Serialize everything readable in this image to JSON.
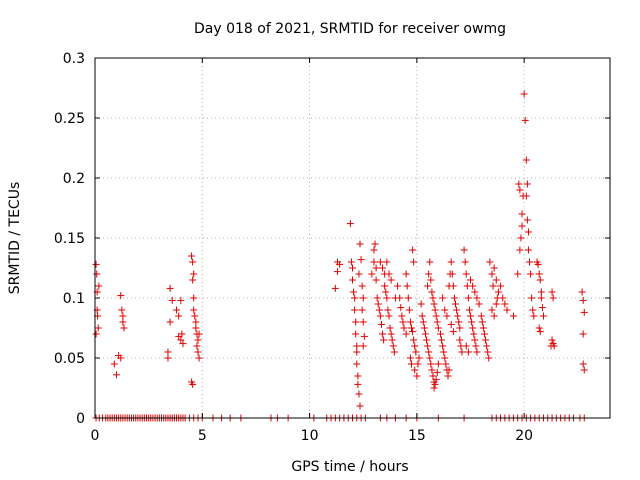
{
  "chart_data": {
    "type": "scatter",
    "title": "Day 018 of 2021, SRMTID for receiver owmg",
    "xlabel": "GPS time / hours",
    "ylabel": "SRMTID / TECUs",
    "xlim": [
      0,
      24
    ],
    "ylim": [
      0,
      0.3
    ],
    "xticks": [
      0,
      5,
      10,
      15,
      20
    ],
    "xtick_labels": [
      "0",
      "5",
      "10",
      "15",
      "20"
    ],
    "yticks": [
      0,
      0.05,
      0.1,
      0.15,
      0.2,
      0.25,
      0.3
    ],
    "ytick_labels": [
      "0",
      "0.05",
      "0.1",
      "0.15",
      "0.2",
      "0.25",
      "0.3"
    ],
    "grid": true,
    "marker": "+",
    "color": "#e00000",
    "series": [
      {
        "name": "SRMTID",
        "points": [
          [
            0.05,
            0.128
          ],
          [
            0.08,
            0.12
          ],
          [
            0.1,
            0.105
          ],
          [
            0.1,
            0.09
          ],
          [
            0.12,
            0.085
          ],
          [
            0.15,
            0.075
          ],
          [
            0.05,
            0.07
          ],
          [
            0.18,
            0.11
          ],
          [
            0.9,
            0.045
          ],
          [
            1.0,
            0.036
          ],
          [
            1.1,
            0.052
          ],
          [
            1.2,
            0.05
          ],
          [
            1.2,
            0.102
          ],
          [
            1.25,
            0.09
          ],
          [
            1.3,
            0.085
          ],
          [
            1.3,
            0.08
          ],
          [
            1.35,
            0.075
          ],
          [
            3.4,
            0.055
          ],
          [
            3.4,
            0.05
          ],
          [
            3.5,
            0.108
          ],
          [
            3.6,
            0.098
          ],
          [
            3.5,
            0.08
          ],
          [
            3.8,
            0.09
          ],
          [
            4.0,
            0.098
          ],
          [
            3.9,
            0.085
          ],
          [
            3.9,
            0.068
          ],
          [
            4.0,
            0.065
          ],
          [
            4.1,
            0.062
          ],
          [
            4.05,
            0.07
          ],
          [
            4.5,
            0.135
          ],
          [
            4.55,
            0.13
          ],
          [
            4.6,
            0.12
          ],
          [
            4.55,
            0.115
          ],
          [
            4.6,
            0.1
          ],
          [
            4.6,
            0.09
          ],
          [
            4.65,
            0.085
          ],
          [
            4.7,
            0.08
          ],
          [
            4.7,
            0.075
          ],
          [
            4.75,
            0.07
          ],
          [
            4.8,
            0.065
          ],
          [
            4.75,
            0.06
          ],
          [
            4.8,
            0.055
          ],
          [
            4.85,
            0.05
          ],
          [
            4.5,
            0.03
          ],
          [
            4.55,
            0.028
          ],
          [
            4.85,
            0.07
          ],
          [
            11.2,
            0.108
          ],
          [
            11.3,
            0.122
          ],
          [
            11.3,
            0.13
          ],
          [
            11.4,
            0.128
          ],
          [
            11.9,
            0.162
          ],
          [
            11.95,
            0.13
          ],
          [
            12.0,
            0.125
          ],
          [
            12.0,
            0.115
          ],
          [
            12.05,
            0.105
          ],
          [
            12.1,
            0.1
          ],
          [
            12.1,
            0.09
          ],
          [
            12.15,
            0.08
          ],
          [
            12.15,
            0.07
          ],
          [
            12.2,
            0.06
          ],
          [
            12.2,
            0.055
          ],
          [
            12.2,
            0.045
          ],
          [
            12.25,
            0.035
          ],
          [
            12.25,
            0.028
          ],
          [
            12.3,
            0.02
          ],
          [
            12.35,
            0.01
          ],
          [
            12.3,
            0.12
          ],
          [
            12.35,
            0.145
          ],
          [
            12.4,
            0.132
          ],
          [
            12.45,
            0.11
          ],
          [
            12.5,
            0.1
          ],
          [
            12.45,
            0.09
          ],
          [
            12.5,
            0.08
          ],
          [
            12.55,
            0.068
          ],
          [
            12.5,
            0.06
          ],
          [
            12.9,
            0.12
          ],
          [
            13.0,
            0.13
          ],
          [
            13.0,
            0.14
          ],
          [
            13.05,
            0.145
          ],
          [
            13.1,
            0.125
          ],
          [
            13.1,
            0.115
          ],
          [
            13.15,
            0.1
          ],
          [
            13.2,
            0.095
          ],
          [
            13.25,
            0.09
          ],
          [
            13.3,
            0.085
          ],
          [
            13.35,
            0.078
          ],
          [
            13.4,
            0.07
          ],
          [
            13.45,
            0.065
          ],
          [
            13.5,
            0.12
          ],
          [
            13.5,
            0.11
          ],
          [
            13.55,
            0.105
          ],
          [
            13.6,
            0.1
          ],
          [
            13.65,
            0.09
          ],
          [
            13.7,
            0.085
          ],
          [
            13.75,
            0.075
          ],
          [
            13.8,
            0.07
          ],
          [
            13.85,
            0.065
          ],
          [
            13.9,
            0.06
          ],
          [
            13.95,
            0.055
          ],
          [
            13.3,
            0.13
          ],
          [
            13.4,
            0.125
          ],
          [
            13.6,
            0.13
          ],
          [
            13.7,
            0.12
          ],
          [
            13.8,
            0.115
          ],
          [
            14.0,
            0.1
          ],
          [
            14.1,
            0.11
          ],
          [
            14.2,
            0.1
          ],
          [
            14.25,
            0.092
          ],
          [
            14.3,
            0.085
          ],
          [
            14.35,
            0.08
          ],
          [
            14.4,
            0.075
          ],
          [
            14.5,
            0.07
          ],
          [
            14.5,
            0.12
          ],
          [
            14.55,
            0.11
          ],
          [
            14.6,
            0.1
          ],
          [
            14.65,
            0.09
          ],
          [
            14.7,
            0.08
          ],
          [
            14.75,
            0.075
          ],
          [
            14.8,
            0.072
          ],
          [
            14.85,
            0.065
          ],
          [
            14.9,
            0.06
          ],
          [
            14.95,
            0.055
          ],
          [
            14.8,
            0.14
          ],
          [
            14.85,
            0.13
          ],
          [
            14.7,
            0.05
          ],
          [
            14.75,
            0.045
          ],
          [
            14.9,
            0.04
          ],
          [
            15.0,
            0.035
          ],
          [
            15.05,
            0.045
          ],
          [
            15.1,
            0.05
          ],
          [
            15.2,
            0.095
          ],
          [
            15.25,
            0.085
          ],
          [
            15.3,
            0.08
          ],
          [
            15.35,
            0.075
          ],
          [
            15.4,
            0.07
          ],
          [
            15.45,
            0.065
          ],
          [
            15.5,
            0.06
          ],
          [
            15.55,
            0.055
          ],
          [
            15.6,
            0.05
          ],
          [
            15.65,
            0.045
          ],
          [
            15.7,
            0.04
          ],
          [
            15.75,
            0.035
          ],
          [
            15.8,
            0.03
          ],
          [
            15.8,
            0.025
          ],
          [
            15.85,
            0.028
          ],
          [
            15.9,
            0.032
          ],
          [
            15.95,
            0.038
          ],
          [
            16.0,
            0.045
          ],
          [
            15.5,
            0.11
          ],
          [
            15.55,
            0.12
          ],
          [
            15.6,
            0.13
          ],
          [
            15.65,
            0.115
          ],
          [
            15.7,
            0.105
          ],
          [
            15.75,
            0.1
          ],
          [
            15.8,
            0.095
          ],
          [
            15.85,
            0.09
          ],
          [
            15.9,
            0.085
          ],
          [
            15.95,
            0.08
          ],
          [
            16.0,
            0.075
          ],
          [
            16.1,
            0.07
          ],
          [
            16.15,
            0.065
          ],
          [
            16.2,
            0.06
          ],
          [
            16.25,
            0.055
          ],
          [
            16.3,
            0.05
          ],
          [
            16.35,
            0.045
          ],
          [
            16.4,
            0.04
          ],
          [
            16.45,
            0.035
          ],
          [
            16.5,
            0.04
          ],
          [
            16.5,
            0.11
          ],
          [
            16.55,
            0.12
          ],
          [
            16.6,
            0.13
          ],
          [
            16.65,
            0.12
          ],
          [
            16.7,
            0.11
          ],
          [
            16.75,
            0.1
          ],
          [
            16.8,
            0.095
          ],
          [
            16.85,
            0.09
          ],
          [
            16.9,
            0.085
          ],
          [
            16.95,
            0.08
          ],
          [
            17.0,
            0.075
          ],
          [
            17.0,
            0.065
          ],
          [
            17.05,
            0.06
          ],
          [
            17.1,
            0.055
          ],
          [
            16.2,
            0.1
          ],
          [
            16.3,
            0.09
          ],
          [
            16.4,
            0.085
          ],
          [
            16.6,
            0.078
          ],
          [
            16.7,
            0.072
          ],
          [
            17.2,
            0.14
          ],
          [
            17.25,
            0.13
          ],
          [
            17.3,
            0.12
          ],
          [
            17.35,
            0.11
          ],
          [
            17.4,
            0.1
          ],
          [
            17.45,
            0.09
          ],
          [
            17.5,
            0.085
          ],
          [
            17.55,
            0.08
          ],
          [
            17.6,
            0.075
          ],
          [
            17.65,
            0.07
          ],
          [
            17.7,
            0.065
          ],
          [
            17.75,
            0.06
          ],
          [
            17.8,
            0.055
          ],
          [
            17.5,
            0.115
          ],
          [
            17.6,
            0.11
          ],
          [
            17.7,
            0.105
          ],
          [
            17.8,
            0.1
          ],
          [
            17.9,
            0.095
          ],
          [
            18.0,
            0.085
          ],
          [
            18.05,
            0.08
          ],
          [
            18.1,
            0.075
          ],
          [
            18.15,
            0.07
          ],
          [
            18.2,
            0.065
          ],
          [
            18.25,
            0.06
          ],
          [
            18.3,
            0.055
          ],
          [
            18.35,
            0.05
          ],
          [
            17.3,
            0.06
          ],
          [
            17.4,
            0.055
          ],
          [
            18.4,
            0.13
          ],
          [
            18.5,
            0.12
          ],
          [
            18.55,
            0.11
          ],
          [
            18.6,
            0.125
          ],
          [
            18.7,
            0.115
          ],
          [
            18.75,
            0.1
          ],
          [
            18.8,
            0.105
          ],
          [
            18.9,
            0.11
          ],
          [
            19.0,
            0.1
          ],
          [
            19.1,
            0.095
          ],
          [
            19.2,
            0.09
          ],
          [
            18.5,
            0.09
          ],
          [
            18.6,
            0.085
          ],
          [
            18.7,
            0.095
          ],
          [
            19.5,
            0.085
          ],
          [
            19.7,
            0.12
          ],
          [
            19.8,
            0.14
          ],
          [
            19.85,
            0.15
          ],
          [
            19.9,
            0.17
          ],
          [
            19.95,
            0.185
          ],
          [
            19.75,
            0.195
          ],
          [
            19.8,
            0.19
          ],
          [
            19.9,
            0.16
          ],
          [
            20.0,
            0.27
          ],
          [
            20.05,
            0.248
          ],
          [
            20.1,
            0.215
          ],
          [
            20.15,
            0.195
          ],
          [
            20.1,
            0.185
          ],
          [
            20.15,
            0.165
          ],
          [
            20.2,
            0.155
          ],
          [
            20.2,
            0.14
          ],
          [
            20.25,
            0.13
          ],
          [
            20.3,
            0.12
          ],
          [
            20.35,
            0.1
          ],
          [
            20.4,
            0.09
          ],
          [
            20.45,
            0.085
          ],
          [
            20.6,
            0.13
          ],
          [
            20.65,
            0.128
          ],
          [
            20.7,
            0.12
          ],
          [
            20.75,
            0.115
          ],
          [
            20.8,
            0.105
          ],
          [
            20.8,
            0.1
          ],
          [
            20.85,
            0.092
          ],
          [
            20.9,
            0.085
          ],
          [
            20.7,
            0.075
          ],
          [
            20.75,
            0.072
          ],
          [
            21.3,
            0.105
          ],
          [
            21.35,
            0.1
          ],
          [
            21.3,
            0.065
          ],
          [
            21.35,
            0.062
          ],
          [
            21.4,
            0.06
          ],
          [
            21.25,
            0.06
          ],
          [
            22.7,
            0.105
          ],
          [
            22.75,
            0.098
          ],
          [
            22.8,
            0.088
          ],
          [
            22.75,
            0.07
          ],
          [
            22.75,
            0.045
          ],
          [
            22.8,
            0.04
          ]
        ],
        "zero_points": [
          0.05,
          0.2,
          0.35,
          0.5,
          0.6,
          0.7,
          0.8,
          0.9,
          1.0,
          1.1,
          1.2,
          1.3,
          1.4,
          1.5,
          1.6,
          1.7,
          1.8,
          1.9,
          2.0,
          2.1,
          2.2,
          2.3,
          2.4,
          2.5,
          2.6,
          2.7,
          2.8,
          2.9,
          3.0,
          3.1,
          3.2,
          3.3,
          3.4,
          3.5,
          3.6,
          3.7,
          3.8,
          3.9,
          4.0,
          4.1,
          4.2,
          4.4,
          4.6,
          4.8,
          5.0,
          5.5,
          5.9,
          6.3,
          6.8,
          8.2,
          8.5,
          9.0,
          10.2,
          10.8,
          11.0,
          11.2,
          11.4,
          11.6,
          11.8,
          12.0,
          12.2,
          12.4,
          12.6,
          13.3,
          13.6,
          14.0,
          14.5,
          15.0,
          16.0,
          17.2,
          18.5,
          18.7,
          18.9,
          19.1,
          19.3,
          19.5,
          19.7,
          19.9,
          20.1,
          20.3,
          20.5,
          20.7,
          20.9,
          21.1,
          21.3,
          21.5,
          21.7,
          21.9,
          22.1,
          22.3,
          22.6,
          22.8
        ]
      }
    ]
  }
}
